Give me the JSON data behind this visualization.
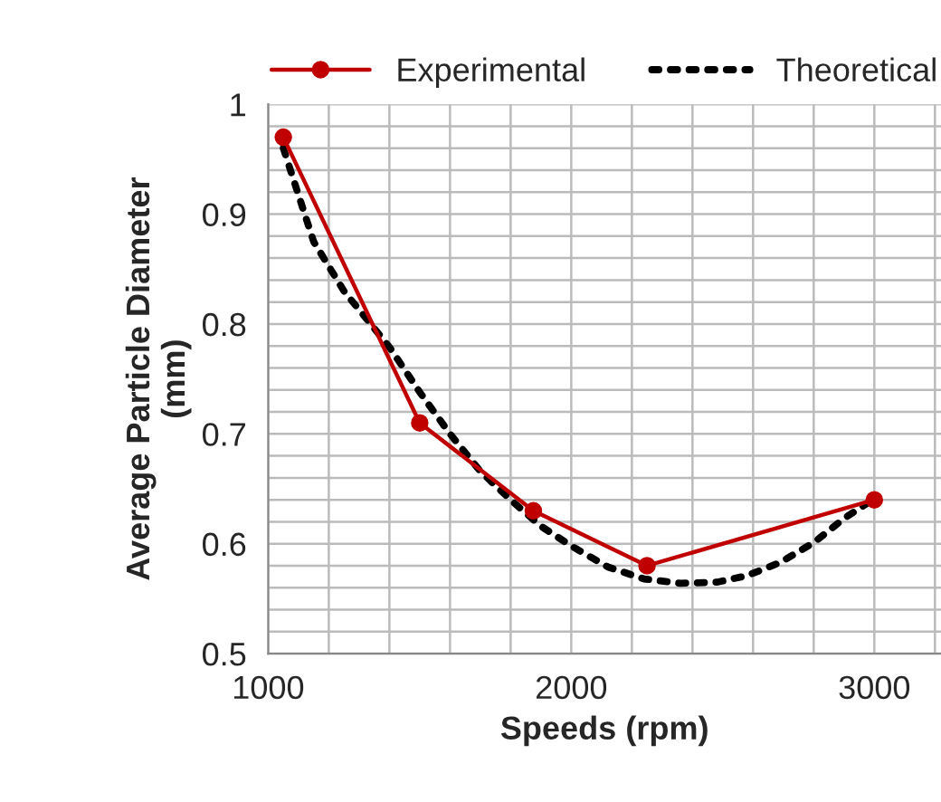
{
  "chart_data": {
    "type": "line",
    "xlabel": "Speeds (rpm)",
    "ylabel": "Average Particle Diameter\n(mm)",
    "xlim": [
      1000,
      3220
    ],
    "xticks": [
      1000,
      2000,
      3000
    ],
    "ylim": [
      0.5,
      1
    ],
    "yticks": [
      0.5,
      0.6,
      0.7,
      0.8,
      0.9,
      1
    ],
    "grid": true,
    "legend": "top",
    "series": [
      {
        "name": "Experimental",
        "color": "#c00000",
        "marker": "circle",
        "line_style": "solid",
        "x": [
          1050,
          1500,
          1875,
          2250,
          3000
        ],
        "values": [
          0.97,
          0.71,
          0.63,
          0.58,
          0.64
        ]
      },
      {
        "name": "Theoretical",
        "color": "#000000",
        "marker": "none",
        "line_style": "dotted",
        "x": [
          1050,
          1150,
          1250,
          1400,
          1500,
          1600,
          1700,
          1800,
          1900,
          2000,
          2120,
          2240,
          2360,
          2480,
          2580,
          2690,
          2800,
          2900,
          3000
        ],
        "values": [
          0.96,
          0.875,
          0.83,
          0.779,
          0.738,
          0.7,
          0.666,
          0.64,
          0.616,
          0.598,
          0.579,
          0.568,
          0.564,
          0.565,
          0.571,
          0.583,
          0.601,
          0.623,
          0.641
        ]
      }
    ]
  }
}
